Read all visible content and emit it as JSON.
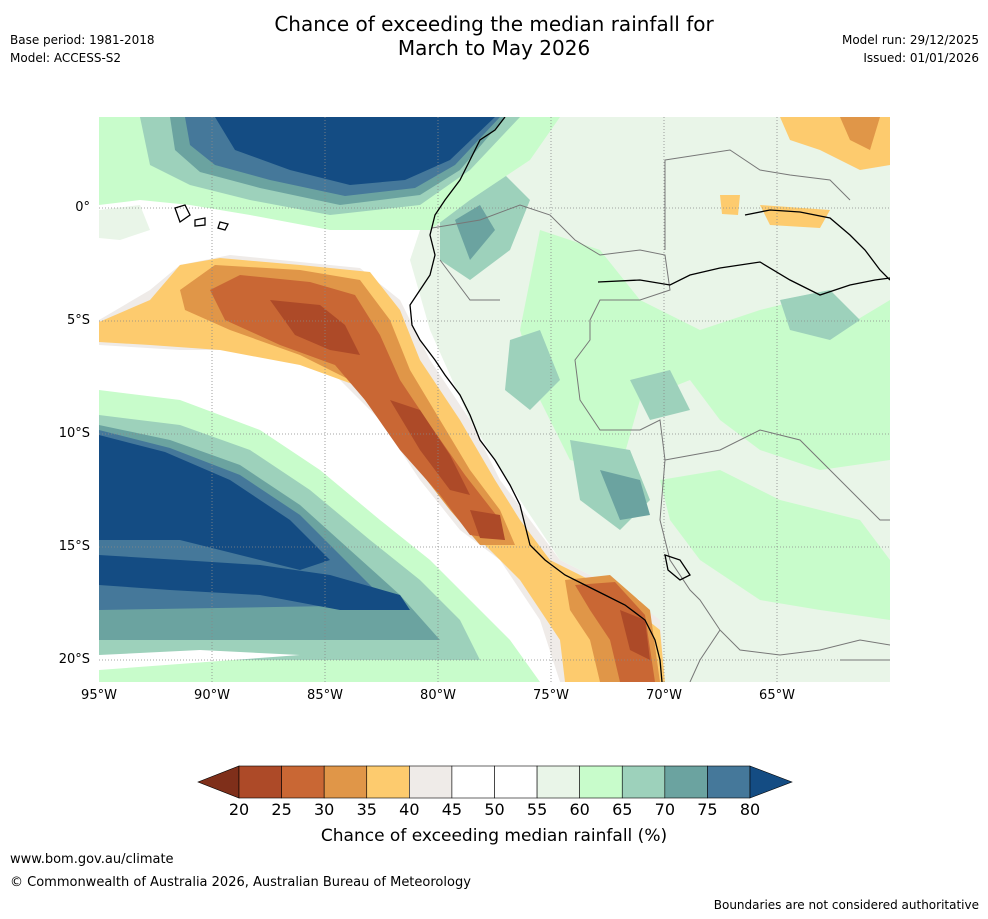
{
  "header": {
    "title_line1": "Chance of exceeding the median rainfall for",
    "title_line2": "March to May 2026",
    "base_period": "Base period: 1981-2018",
    "model": "Model: ACCESS-S2",
    "model_run": "Model run: 29/12/2025",
    "issued": "Issued: 01/01/2026"
  },
  "map": {
    "region": "Western South America and eastern Pacific",
    "lon_range": [
      -95,
      -60
    ],
    "lat_range": [
      -21,
      4
    ],
    "lat_labels": [
      "0°",
      "5°S",
      "10°S",
      "15°S",
      "20°S"
    ],
    "lon_labels": [
      "95°W",
      "90°W",
      "85°W",
      "80°W",
      "75°W",
      "70°W",
      "65°W"
    ]
  },
  "legend": {
    "title": "Chance of exceeding median rainfall (%)",
    "ticks": [
      "20",
      "25",
      "30",
      "35",
      "40",
      "45",
      "50",
      "55",
      "60",
      "65",
      "70",
      "75",
      "80"
    ],
    "colors": [
      "#7f2f1a",
      "#ad4a28",
      "#c96734",
      "#e09648",
      "#fdcb6e",
      "#efebe8",
      "#ffffff",
      "#ffffff",
      "#e9f5e8",
      "#c8fccb",
      "#9dd1bb",
      "#6ba3a0",
      "#45789a",
      "#144c83"
    ]
  },
  "footer": {
    "website": "www.bom.gov.au/climate",
    "copyright": "© Commonwealth of Australia 2026, Australian Bureau of Meteorology",
    "disclaimer": "Boundaries are not considered authoritative"
  }
}
